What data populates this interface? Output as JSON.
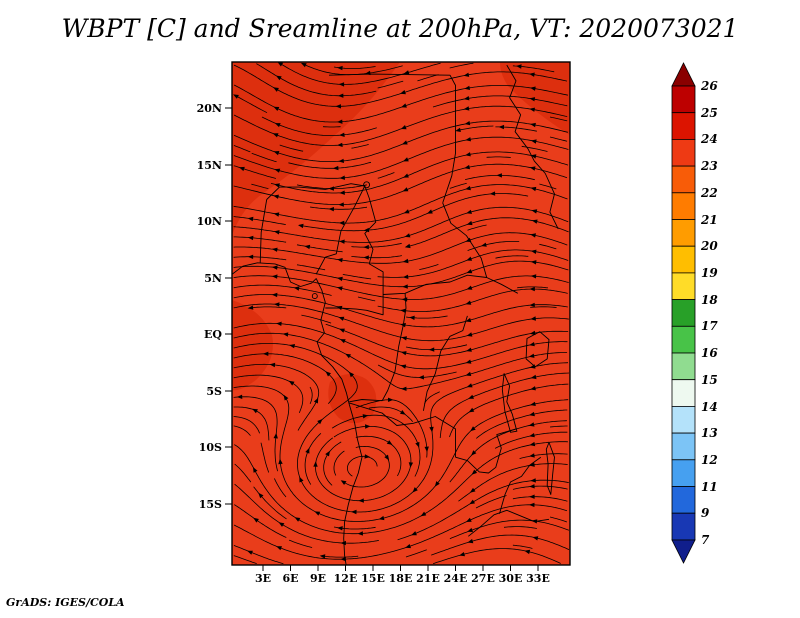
{
  "title": "WBPT [C] and Sreamline at 200hPa, VT: 2020073021",
  "footer": "GrADS: IGES/COLA",
  "axes": {
    "y_ticks": [
      "20N",
      "15N",
      "10N",
      "5N",
      "EQ",
      "5S",
      "10S",
      "15S"
    ],
    "x_ticks": [
      "3E",
      "6E",
      "9E",
      "12E",
      "15E",
      "18E",
      "21E",
      "24E",
      "27E",
      "30E",
      "33E"
    ]
  },
  "colorbar": {
    "labels": [
      "26",
      "25",
      "24",
      "23",
      "22",
      "21",
      "20",
      "19",
      "18",
      "17",
      "16",
      "15",
      "14",
      "13",
      "12",
      "11",
      "9",
      "7"
    ],
    "top_color": "#8a0000",
    "bottom_color": "#101e8c",
    "segment_colors": [
      "#bd0000",
      "#dc1400",
      "#ee3a14",
      "#f85c08",
      "#ff7c00",
      "#ff9c00",
      "#ffbe00",
      "#ffdc28",
      "#28a028",
      "#48c348",
      "#90dc90",
      "#eef9f0",
      "#b4e2fa",
      "#7cc4f6",
      "#46a0f0",
      "#2268dc",
      "#1838b4"
    ]
  },
  "map": {
    "fill_color": "#e93d1b",
    "dark_patch_color": "#dd2f0e",
    "line_color": "#000000",
    "stream_color": "#000000"
  },
  "chart_data": {
    "type": "heatmap",
    "title": "WBPT [C] and Sreamline at 200hPa, VT: 2020073021",
    "variable": "Wet-bulb potential temperature (WBPT) [C] with streamlines",
    "level": "200hPa",
    "valid_time": "2020073021",
    "x_tick_labels": [
      "3E",
      "6E",
      "9E",
      "12E",
      "15E",
      "18E",
      "21E",
      "24E",
      "27E",
      "30E",
      "33E"
    ],
    "y_tick_labels": [
      "20N",
      "15N",
      "10N",
      "5N",
      "EQ",
      "5S",
      "10S",
      "15S"
    ],
    "lon_range_deg": [
      0,
      36
    ],
    "lat_range_deg": [
      -20.5,
      24
    ],
    "colorbar_levels": [
      7,
      9,
      11,
      12,
      13,
      14,
      15,
      16,
      17,
      18,
      19,
      20,
      21,
      22,
      23,
      24,
      25,
      26
    ],
    "colorbar_colors_bottom_to_top": [
      "#101e8c",
      "#1838b4",
      "#2268dc",
      "#46a0f0",
      "#7cc4f6",
      "#b4e2fa",
      "#eef9f0",
      "#90dc90",
      "#48c348",
      "#28a028",
      "#ffdc28",
      "#ffbe00",
      "#ff9c00",
      "#ff7c00",
      "#f85c08",
      "#ee3a14",
      "#dc1400",
      "#bd0000",
      "#8a0000"
    ],
    "field_summary": "WBPT nearly uniform 23-25 C (red shading) over the entire Africa domain, slightly darker red patches in the northwest and near the Angola coast",
    "streamline_features": "mostly zonal wavy streamlines with a closed circulation (vortex) centered near 13E, 12S on the Angola coast",
    "credit": "GrADS: IGES/COLA"
  }
}
